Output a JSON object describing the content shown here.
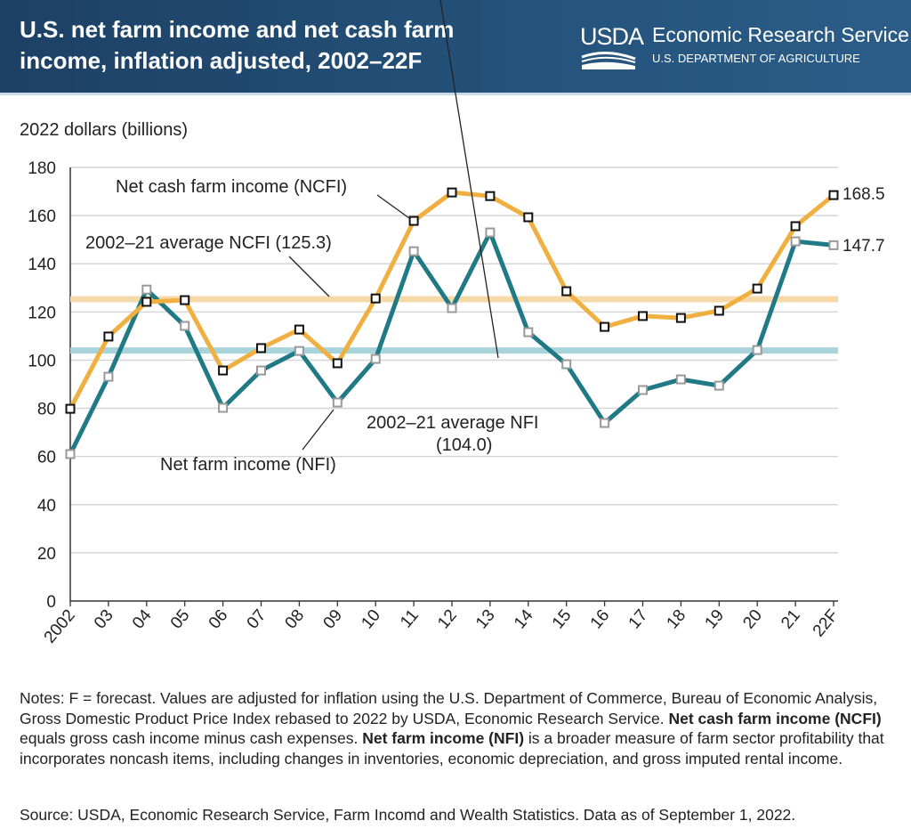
{
  "header": {
    "title": "U.S. net farm income and net cash farm income, inflation adjusted, 2002–22F",
    "logo": "USDA",
    "agency": "Economic Research Service",
    "department": "U.S. DEPARTMENT OF AGRICULTURE"
  },
  "chart_data": {
    "type": "line",
    "title": "U.S. net farm income and net cash farm income, inflation adjusted, 2002–22F",
    "ylabel": "2022 dollars (billions)",
    "xlabel": "",
    "ylim": [
      0,
      180
    ],
    "yticks": [
      "0",
      "20",
      "40",
      "60",
      "80",
      "100",
      "120",
      "140",
      "160",
      "180"
    ],
    "categories": [
      "2002",
      "03",
      "04",
      "05",
      "06",
      "07",
      "08",
      "09",
      "10",
      "11",
      "12",
      "13",
      "14",
      "15",
      "16",
      "17",
      "18",
      "19",
      "20",
      "21",
      "22F"
    ],
    "series": [
      {
        "name": "Net cash farm income (NCFI)",
        "color": "#f0b041",
        "values": [
          79.8,
          109.8,
          124.2,
          124.9,
          95.7,
          105.0,
          112.7,
          98.7,
          125.6,
          157.8,
          169.6,
          168.1,
          159.3,
          128.6,
          113.8,
          118.3,
          117.5,
          120.5,
          129.7,
          155.6,
          168.5
        ],
        "end_label": "168.5"
      },
      {
        "name": "Net farm income (NFI)",
        "color": "#1f7a85",
        "values": [
          61.0,
          93.1,
          129.3,
          114.2,
          80.2,
          95.7,
          103.8,
          82.4,
          100.5,
          145.2,
          121.6,
          153.0,
          111.6,
          98.3,
          73.9,
          87.6,
          92.0,
          89.4,
          104.2,
          149.3,
          147.7
        ],
        "end_label": "147.7"
      }
    ],
    "averages": [
      {
        "label": "2002–21 average NCFI (125.3)",
        "value": 125.3,
        "color": "#f6d9a8"
      },
      {
        "label_line1": "2002–21 average NFI",
        "label_line2": "(104.0)",
        "value": 104.0,
        "color": "#a9d3da"
      }
    ],
    "grid": true
  },
  "notes": {
    "p1": "Notes: F = forecast. Values are adjusted for inflation using the U.S. Department of Commerce, Bureau of Economic Analysis, Gross Domestic Product Price Index rebased to 2022 by USDA, Economic Research Service. ",
    "b1": "Net cash farm income (NCFI)",
    "p2": " equals gross cash income minus cash expenses. ",
    "b2": "Net farm income (NFI)",
    "p3": " is a broader measure of farm sector profitability that incorporates noncash items, including changes in inventories, economic depreciation, and gross imputed rental income."
  },
  "source": "Source: USDA, Economic Research Service, Farm Incomd and Wealth Statistics. Data as of September 1, 2022."
}
